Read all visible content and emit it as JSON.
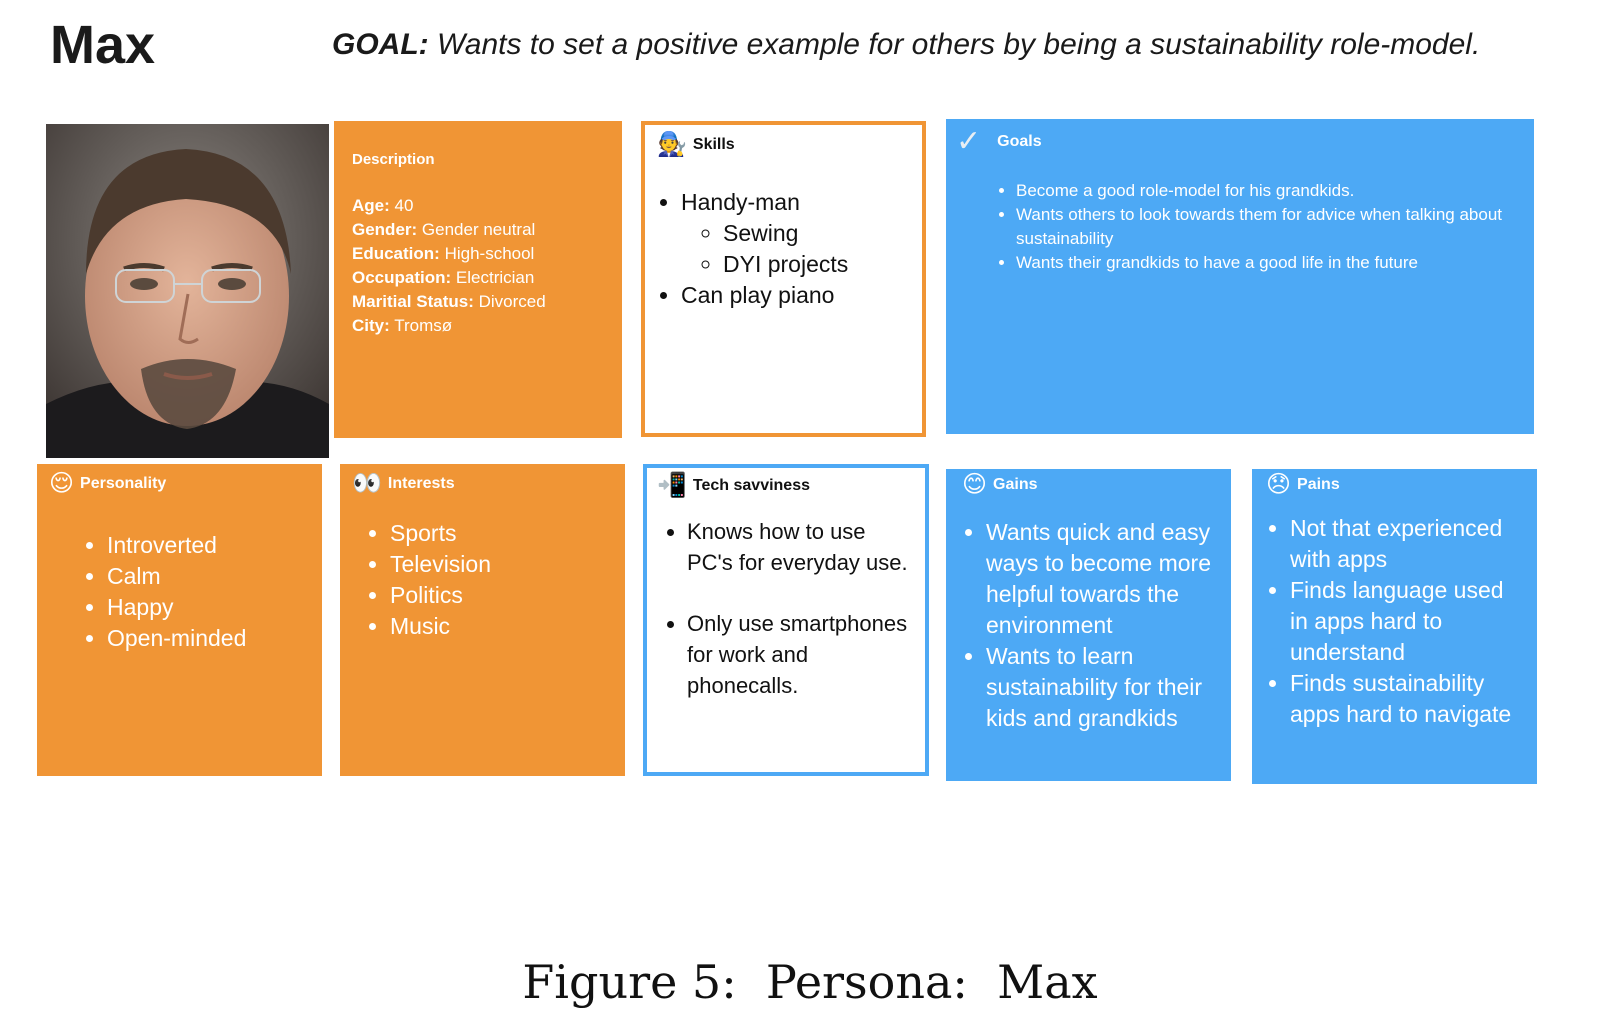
{
  "persona_name": "Max",
  "goal": {
    "label": "GOAL:",
    "text": " Wants to set a positive example for others by being a sustainability role-model."
  },
  "colors": {
    "orange": "#f09535",
    "blue": "#4da9f5"
  },
  "description": {
    "title": "Description",
    "fields": [
      {
        "label": "Age:",
        "value": " 40"
      },
      {
        "label": "Gender:",
        "value": " Gender neutral"
      },
      {
        "label": "Education:",
        "value": " High-school"
      },
      {
        "label": "Occupation:",
        "value": " Electrician"
      },
      {
        "label": "Maritial Status:",
        "value": " Divorced"
      },
      {
        "label": "City:",
        "value": " Tromsø"
      }
    ]
  },
  "skills": {
    "title": "Skills",
    "icon": "mechanic-emoji-icon",
    "items": [
      "Handy-man",
      "Can play piano"
    ],
    "sub_items": [
      "Sewing",
      "DYI projects"
    ]
  },
  "goals": {
    "title": "Goals",
    "icon": "checkmark-icon",
    "items": [
      "Become a good role-model for his grandkids.",
      "Wants others to look towards them for advice when talking about sustainability",
      "Wants their grandkids to have a good life in the future"
    ]
  },
  "personality": {
    "title": "Personality",
    "icon": "relieved-face-icon",
    "items": [
      "Introverted",
      "Calm",
      "Happy",
      "Open-minded"
    ]
  },
  "interests": {
    "title": "Interests",
    "icon": "eyes-icon",
    "items": [
      "Sports",
      "Television",
      "Politics",
      "Music"
    ]
  },
  "tech": {
    "title": "Tech savviness",
    "icon": "mobile-phone-arrow-icon",
    "items": [
      "Knows how to use PC's for everyday use.",
      "Only use smartphones for work and phonecalls."
    ]
  },
  "gains": {
    "title": "Gains",
    "icon": "smiling-face-icon",
    "items": [
      "Wants quick and easy ways to become more helpful towards the environment",
      "Wants to learn sustainability for their kids and grandkids"
    ]
  },
  "pains": {
    "title": "Pains",
    "icon": "disappointed-face-icon",
    "items": [
      "Not that experienced with apps",
      "Finds language used in apps hard to understand",
      "Finds sustainability apps hard to navigate"
    ]
  },
  "caption": "Figure 5:  Persona:  Max"
}
